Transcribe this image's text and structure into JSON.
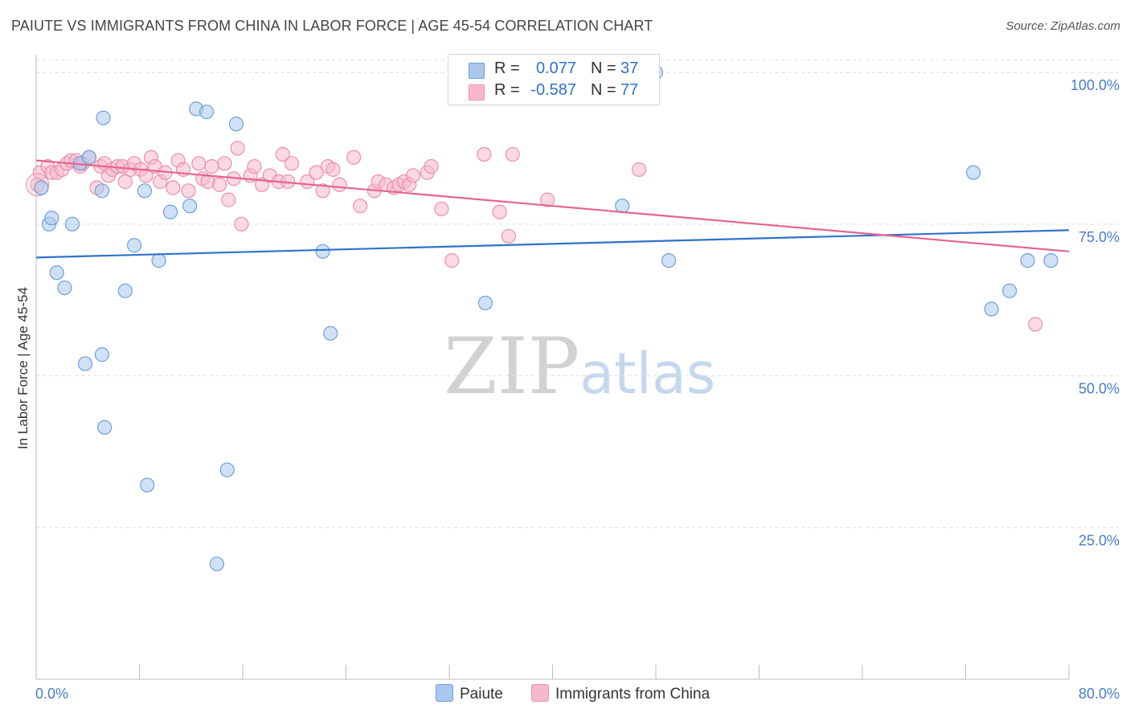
{
  "title": "PAIUTE VS IMMIGRANTS FROM CHINA IN LABOR FORCE | AGE 45-54 CORRELATION CHART",
  "source": "Source: ZipAtlas.com",
  "watermark": {
    "zip": "ZIP",
    "atlas": "atlas"
  },
  "legend": {
    "r_label": "R =",
    "n_label": "N =",
    "rows": [
      {
        "r": "0.077",
        "n": "37"
      },
      {
        "r": "-0.587",
        "n": "77"
      }
    ]
  },
  "colors": {
    "paiute_fill": "#aac8ee",
    "paiute_stroke": "#6f9fdc",
    "paiute_line": "#2f72cc",
    "china_fill": "#f6b9cb",
    "china_stroke": "#ec8fab",
    "china_line": "#e5648f",
    "tick_text": "#4a7cc9"
  },
  "chart_data": {
    "type": "scatter",
    "title": "PAIUTE VS IMMIGRANTS FROM CHINA IN LABOR FORCE | AGE 45-54 CORRELATION CHART",
    "xlabel": "",
    "ylabel": "In Labor Force | Age 45-54",
    "xlim": [
      0,
      80
    ],
    "ylim": [
      0,
      102
    ],
    "x_tick_labels": [
      "0.0%",
      "80.0%"
    ],
    "y_ticks": [
      25,
      50,
      75,
      100
    ],
    "y_tick_labels": [
      "25.0%",
      "50.0%",
      "75.0%",
      "100.0%"
    ],
    "grid": "horizontal dashed",
    "legend_position": "top-center",
    "series": [
      {
        "name": "Paiute",
        "r": 0.077,
        "n": 37,
        "trend": {
          "x": [
            0,
            80
          ],
          "y": [
            69.5,
            74.0
          ]
        },
        "points": [
          [
            0.4,
            81.0
          ],
          [
            1.0,
            75.0
          ],
          [
            1.2,
            76.0
          ],
          [
            1.6,
            67.0
          ],
          [
            2.2,
            64.5
          ],
          [
            2.8,
            75.0
          ],
          [
            3.4,
            85.0
          ],
          [
            3.8,
            52.0
          ],
          [
            4.1,
            86.0
          ],
          [
            5.1,
            80.5
          ],
          [
            5.1,
            53.5
          ],
          [
            5.2,
            92.5
          ],
          [
            5.3,
            41.5
          ],
          [
            6.9,
            64.0
          ],
          [
            7.6,
            71.5
          ],
          [
            8.4,
            80.5
          ],
          [
            8.6,
            32.0
          ],
          [
            9.5,
            69.0
          ],
          [
            10.4,
            77.0
          ],
          [
            11.9,
            78.0
          ],
          [
            12.4,
            94.0
          ],
          [
            13.2,
            93.5
          ],
          [
            14.0,
            19.0
          ],
          [
            14.8,
            34.5
          ],
          [
            15.5,
            91.5
          ],
          [
            22.2,
            70.5
          ],
          [
            22.8,
            57.0
          ],
          [
            34.8,
            62.0
          ],
          [
            45.4,
            78.0
          ],
          [
            47.3,
            100.0
          ],
          [
            48.0,
            100.0
          ],
          [
            49.0,
            69.0
          ],
          [
            72.6,
            83.5
          ],
          [
            74.0,
            61.0
          ],
          [
            75.4,
            64.0
          ],
          [
            76.8,
            69.0
          ],
          [
            78.6,
            69.0
          ]
        ]
      },
      {
        "name": "Immigrants from China",
        "r": -0.587,
        "n": 77,
        "trend": {
          "x": [
            0,
            80
          ],
          "y": [
            85.5,
            70.5
          ]
        },
        "points": [
          [
            0.1,
            81.5
          ],
          [
            0.3,
            83.5
          ],
          [
            0.9,
            84.5
          ],
          [
            1.2,
            83.5
          ],
          [
            1.6,
            83.5
          ],
          [
            2.0,
            84.0
          ],
          [
            2.4,
            85.0
          ],
          [
            2.7,
            85.5
          ],
          [
            3.1,
            85.5
          ],
          [
            3.4,
            84.5
          ],
          [
            3.6,
            85.0
          ],
          [
            4.1,
            86.0
          ],
          [
            4.7,
            81.0
          ],
          [
            5.0,
            84.5
          ],
          [
            5.3,
            85.0
          ],
          [
            5.6,
            83.0
          ],
          [
            5.9,
            84.0
          ],
          [
            6.3,
            84.5
          ],
          [
            6.7,
            84.5
          ],
          [
            6.9,
            82.0
          ],
          [
            7.3,
            84.0
          ],
          [
            7.6,
            85.0
          ],
          [
            8.1,
            84.0
          ],
          [
            8.5,
            83.0
          ],
          [
            8.9,
            86.0
          ],
          [
            9.2,
            84.5
          ],
          [
            9.6,
            82.0
          ],
          [
            10.0,
            83.5
          ],
          [
            10.6,
            81.0
          ],
          [
            11.0,
            85.5
          ],
          [
            11.4,
            84.0
          ],
          [
            11.8,
            80.5
          ],
          [
            12.6,
            85.0
          ],
          [
            12.9,
            82.5
          ],
          [
            13.3,
            82.0
          ],
          [
            13.6,
            84.5
          ],
          [
            14.2,
            81.5
          ],
          [
            14.6,
            85.0
          ],
          [
            14.9,
            79.0
          ],
          [
            15.3,
            82.5
          ],
          [
            15.6,
            87.5
          ],
          [
            15.9,
            75.0
          ],
          [
            16.6,
            83.0
          ],
          [
            16.9,
            84.5
          ],
          [
            17.5,
            81.5
          ],
          [
            18.1,
            83.0
          ],
          [
            18.8,
            82.0
          ],
          [
            19.1,
            86.5
          ],
          [
            19.5,
            82.0
          ],
          [
            19.8,
            85.0
          ],
          [
            21.0,
            82.0
          ],
          [
            21.7,
            83.5
          ],
          [
            22.2,
            80.5
          ],
          [
            22.6,
            84.5
          ],
          [
            23.0,
            84.0
          ],
          [
            23.5,
            81.5
          ],
          [
            24.6,
            86.0
          ],
          [
            25.1,
            78.0
          ],
          [
            26.2,
            80.5
          ],
          [
            26.5,
            82.0
          ],
          [
            27.1,
            81.5
          ],
          [
            27.7,
            81.0
          ],
          [
            28.1,
            81.5
          ],
          [
            28.5,
            82.0
          ],
          [
            28.9,
            81.5
          ],
          [
            29.2,
            83.0
          ],
          [
            30.3,
            83.5
          ],
          [
            30.6,
            84.5
          ],
          [
            31.4,
            77.5
          ],
          [
            32.2,
            69.0
          ],
          [
            34.7,
            86.5
          ],
          [
            35.9,
            77.0
          ],
          [
            36.6,
            73.0
          ],
          [
            36.9,
            86.5
          ],
          [
            39.6,
            79.0
          ],
          [
            46.7,
            84.0
          ],
          [
            77.4,
            58.5
          ]
        ]
      }
    ]
  }
}
